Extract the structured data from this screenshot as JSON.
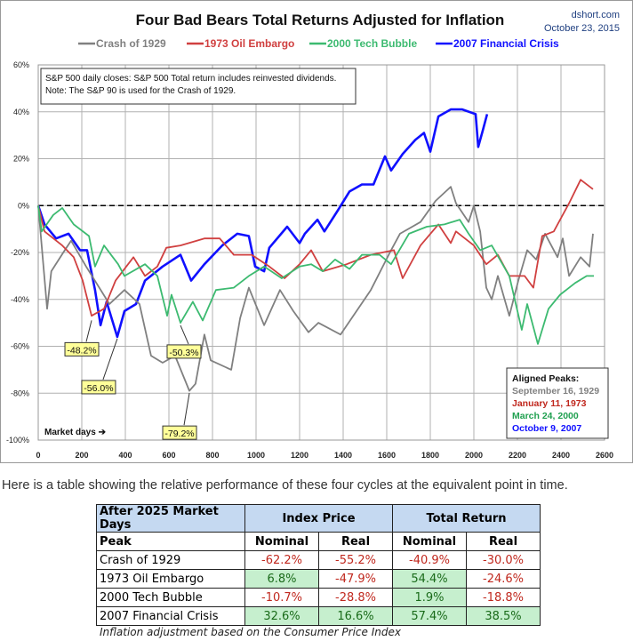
{
  "chart_data": {
    "type": "line",
    "title": "Four Bad Bears Total Returns Adjusted for Inflation",
    "source": "dshort.com",
    "date": "October 23, 2015",
    "xlabel": "Market days ➔",
    "xlim": [
      0,
      2600
    ],
    "ylim": [
      -100,
      60
    ],
    "x_ticks": [
      0,
      200,
      400,
      600,
      800,
      1000,
      1200,
      1400,
      1600,
      1800,
      2000,
      2200,
      2400,
      2600
    ],
    "y_ticks": [
      60,
      40,
      20,
      0,
      -20,
      -40,
      -60,
      -80,
      -100
    ],
    "y_tick_labels": [
      "60%",
      "40%",
      "20%",
      "0%",
      "-20%",
      "-40%",
      "-60%",
      "-80%",
      "-100%"
    ],
    "grid": true,
    "legend_position": "top",
    "note_lines": [
      "S&P 500 daily closes: S&P 500 Total return includes reinvested dividends.",
      "Note: The S&P 90 is used for the Crash of 1929."
    ],
    "aligned_peaks": {
      "title": "Aligned Peaks:",
      "items": [
        {
          "text": "September 16, 1929",
          "color": "#808080"
        },
        {
          "text": "January 11, 1973",
          "color": "#c0281e"
        },
        {
          "text": "March 24, 2000",
          "color": "#20a050"
        },
        {
          "text": "October 9, 2007",
          "color": "#1010ff"
        }
      ]
    },
    "series": [
      {
        "name": "Crash of 1929",
        "color": "#808080",
        "x": [
          0,
          41,
          60,
          122,
          151,
          220,
          327,
          396,
          465,
          518,
          571,
          628,
          694,
          722,
          763,
          792,
          886,
          927,
          967,
          1037,
          1110,
          1171,
          1241,
          1286,
          1388,
          1527,
          1620,
          1661,
          1755,
          1824,
          1894,
          1918,
          1976,
          2000,
          2029,
          2057,
          2082,
          2110,
          2163,
          2204,
          2245,
          2286,
          2327,
          2384,
          2408,
          2437,
          2490,
          2531,
          2547
        ],
        "y": [
          0,
          -44,
          -28,
          -19,
          -15,
          -26,
          -42,
          -36,
          -42,
          -64,
          -67,
          -64,
          -79,
          -76,
          -55,
          -66,
          -70,
          -48,
          -35,
          -51,
          -36,
          -45,
          -54,
          -50,
          -55,
          -36,
          -19,
          -12,
          -7,
          2,
          8,
          1,
          -7,
          0,
          -11,
          -35,
          -40,
          -30,
          -47,
          -32,
          -19,
          -23,
          -12,
          -22,
          -14,
          -30,
          -22,
          -26,
          -12
        ]
      },
      {
        "name": "1973 Oil Embargo",
        "color": "#d04040",
        "x": [
          0,
          29,
          110,
          163,
          204,
          245,
          302,
          355,
          437,
          490,
          547,
          588,
          653,
          763,
          833,
          898,
          980,
          1061,
          1131,
          1200,
          1253,
          1306,
          1416,
          1527,
          1633,
          1673,
          1755,
          1837,
          1894,
          1918,
          2000,
          2057,
          2110,
          2163,
          2233,
          2273,
          2314,
          2367,
          2437,
          2490,
          2547
        ],
        "y": [
          0,
          -11,
          -17,
          -22,
          -32,
          -47,
          -44,
          -32,
          -22,
          -30,
          -26,
          -18,
          -17,
          -14,
          -14,
          -21,
          -21,
          -26,
          -31,
          -25,
          -19,
          -28,
          -25,
          -21,
          -19,
          -31,
          -17,
          -8,
          -16,
          -11,
          -17,
          -25,
          -21,
          -30,
          -30,
          -35,
          -13,
          -11,
          1,
          11,
          7
        ]
      },
      {
        "name": "2000 Tech Bubble",
        "color": "#3cba70",
        "x": [
          0,
          16,
          69,
          110,
          163,
          233,
          261,
          302,
          367,
          396,
          490,
          547,
          592,
          612,
          653,
          710,
          755,
          816,
          898,
          967,
          1037,
          1118,
          1200,
          1253,
          1306,
          1363,
          1429,
          1486,
          1567,
          1620,
          1702,
          1784,
          1865,
          1935,
          1976,
          2029,
          2082,
          2163,
          2220,
          2245,
          2294,
          2343,
          2396,
          2465,
          2518,
          2551
        ],
        "y": [
          0,
          -11,
          -4,
          -1,
          -8,
          -13,
          -26,
          -17,
          -25,
          -30,
          -25,
          -30,
          -47,
          -38,
          -50,
          -41,
          -49,
          -36,
          -35,
          -30,
          -26,
          -31,
          -26,
          -25,
          -28,
          -23,
          -27,
          -21,
          -21,
          -25,
          -12,
          -9,
          -8,
          -6,
          -12,
          -19,
          -17,
          -30,
          -53,
          -42,
          -59,
          -44,
          -38,
          -33,
          -30,
          -30
        ]
      },
      {
        "name": "2007 Financial Crisis",
        "color": "#1010ff",
        "x": [
          0,
          29,
          82,
          139,
          192,
          224,
          261,
          286,
          314,
          363,
          396,
          449,
          490,
          571,
          653,
          702,
          763,
          845,
          914,
          967,
          996,
          1037,
          1061,
          1143,
          1200,
          1224,
          1282,
          1314,
          1376,
          1429,
          1486,
          1539,
          1592,
          1620,
          1673,
          1731,
          1771,
          1800,
          1837,
          1894,
          1947,
          2008,
          2020,
          2041,
          2061
        ],
        "y": [
          0,
          -8,
          -14,
          -12,
          -19,
          -19,
          -36,
          -51,
          -41,
          -56,
          -45,
          -42,
          -32,
          -26,
          -21,
          -32,
          -25,
          -17,
          -12,
          -13,
          -26,
          -28,
          -18,
          -9,
          -16,
          -12,
          -6,
          -11,
          -2,
          6,
          9,
          9,
          21,
          15,
          22,
          28,
          31,
          23,
          38,
          41,
          41,
          39,
          25,
          32,
          39
        ]
      }
    ],
    "annotations": [
      {
        "text": "-48.2%",
        "x": 245,
        "y": -48.2,
        "series": "1973 Oil Embargo"
      },
      {
        "text": "-56.0%",
        "x": 363,
        "y": -56.0,
        "series": "2007 Financial Crisis"
      },
      {
        "text": "-50.3%",
        "x": 653,
        "y": -50.3,
        "series": "2000 Tech Bubble"
      },
      {
        "text": "-79.2%",
        "x": 694,
        "y": -79.2,
        "series": "Crash of 1929"
      }
    ]
  },
  "intro_text": "Here is a table showing the relative performance of these four cycles at the equivalent point in time.",
  "table": {
    "header1": [
      "After 2025 Market Days",
      "Index Price",
      "Total Return"
    ],
    "header2": [
      "Peak",
      "Nominal",
      "Real",
      "Nominal",
      "Real"
    ],
    "rows": [
      {
        "label": "Crash of 1929",
        "values": [
          "-62.2%",
          "-55.2%",
          "-40.9%",
          "-30.0%"
        ]
      },
      {
        "label": "1973 Oil Embargo",
        "values": [
          "6.8%",
          "-47.9%",
          "54.4%",
          "-24.6%"
        ]
      },
      {
        "label": "2000 Tech Bubble",
        "values": [
          "-10.7%",
          "-28.8%",
          "1.9%",
          "-18.8%"
        ]
      },
      {
        "label": "2007 Financial Crisis",
        "values": [
          "32.6%",
          "16.6%",
          "57.4%",
          "38.5%"
        ]
      }
    ],
    "caption": "Inflation adjustment based on the Consumer Price Index"
  }
}
